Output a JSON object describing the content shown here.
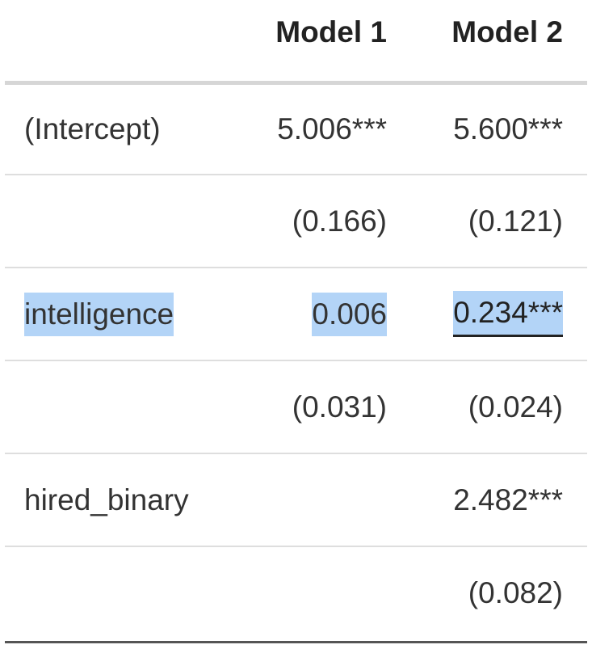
{
  "table": {
    "headers": [
      "",
      "Model 1",
      "Model 2"
    ],
    "rows": [
      {
        "label": "(Intercept)",
        "model1": "5.006***",
        "model2": "5.600***"
      },
      {
        "label": "",
        "model1": "(0.166)",
        "model2": "(0.121)"
      },
      {
        "label": "intelligence",
        "model1": "0.006",
        "model2": "0.234***"
      },
      {
        "label": "",
        "model1": "(0.031)",
        "model2": "(0.024)"
      },
      {
        "label": "hired_binary",
        "model1": "",
        "model2": "2.482***"
      },
      {
        "label": "",
        "model1": "",
        "model2": "(0.082)"
      }
    ]
  },
  "colors": {
    "selection_highlight": "#b3d4f7",
    "rule": "#dedede",
    "text": "#333333"
  }
}
